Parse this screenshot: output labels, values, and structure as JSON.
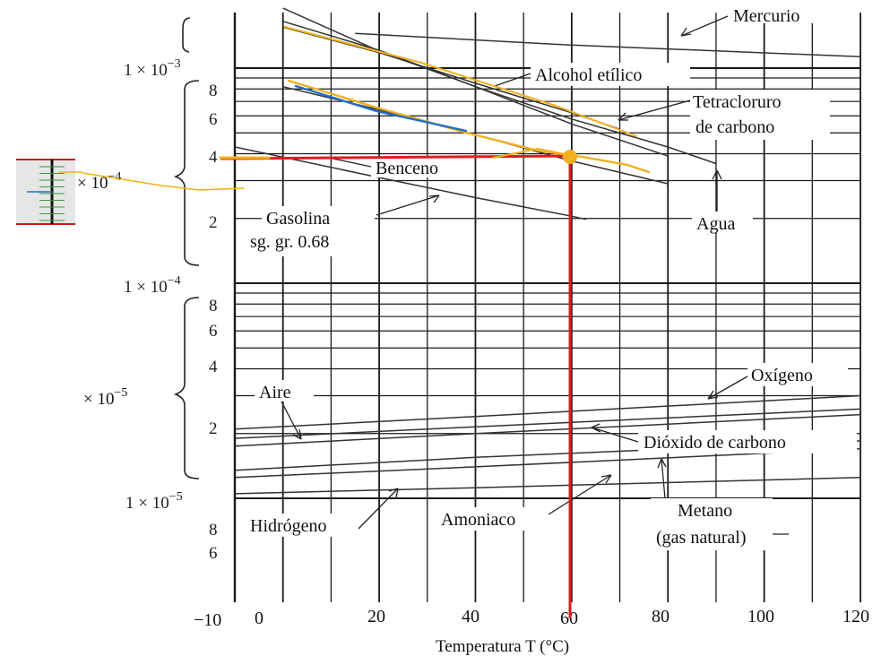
{
  "chart_data": {
    "type": "line",
    "xlabel": "Temperatura T (°C)",
    "x_ticks": [
      "−10",
      "0",
      "20",
      "40",
      "60",
      "80",
      "100",
      "120"
    ],
    "xlim": [
      -10,
      120
    ],
    "y_scale": "log",
    "y_tick_labels": {
      "e3": [
        "1 × 10",
        "−3"
      ],
      "e4": [
        "1 × 10",
        "−4"
      ],
      "e5": [
        "1 × 10",
        "−5"
      ],
      "g4": [
        "× 10",
        "−4"
      ],
      "g5": [
        "× 10",
        "−5"
      ],
      "digits": [
        "8",
        "6",
        "4",
        "2"
      ]
    },
    "series": [
      {
        "name": "Mercurio",
        "x": [
          15,
          60,
          120
        ],
        "y": [
          0.00145,
          0.00128,
          0.00113
        ]
      },
      {
        "name": "Alcohol etílico",
        "x": [
          0,
          20,
          40,
          60,
          80
        ],
        "y": [
          0.00165,
          0.00121,
          0.00082,
          0.00055,
          0.00039
        ]
      },
      {
        "name": "Tetracloruro de carbono",
        "x": [
          0,
          20,
          40,
          60,
          70
        ],
        "y": [
          0.00155,
          0.00118,
          0.00085,
          0.00062,
          0.00052
        ]
      },
      {
        "name": "Benceno",
        "x": [
          0,
          20,
          40,
          60,
          80
        ],
        "y": [
          0.00082,
          0.00064,
          0.00049,
          0.00037,
          0.00029
        ]
      },
      {
        "name": "Agua",
        "x": [
          0,
          20,
          40,
          60,
          80,
          90
        ],
        "y": [
          0.0019,
          0.0012,
          0.00082,
          0.00058,
          0.00043,
          0.00036
        ]
      },
      {
        "name": "Gasolina sg. gr. 0.68",
        "x": [
          -10,
          20,
          40,
          60,
          63
        ],
        "y": [
          0.00043,
          0.00031,
          0.00025,
          0.000205,
          0.000198
        ]
      },
      {
        "name": "Oxígeno",
        "x": [
          -10,
          40,
          120
        ],
        "y": [
          2.1e-05,
          2.4e-05,
          3e-05
        ]
      },
      {
        "name": "Aire",
        "x": [
          -10,
          40,
          120
        ],
        "y": [
          1.9e-05,
          2.15e-05,
          2.6e-05
        ]
      },
      {
        "name": "Dióxido de carbono",
        "x": [
          -10,
          40,
          120
        ],
        "y": [
          1.75e-05,
          2e-05,
          2.45e-05
        ]
      },
      {
        "name": "Metano (gas natural)",
        "x": [
          -10,
          40,
          120
        ],
        "y": [
          1.35e-05,
          1.55e-05,
          1.85e-05
        ]
      },
      {
        "name": "Amoniaco",
        "x": [
          -10,
          40,
          120
        ],
        "y": [
          1.25e-05,
          1.4e-05,
          1.7e-05
        ]
      },
      {
        "name": "Hidrógeno",
        "x": [
          -10,
          40,
          120
        ],
        "y": [
          1.05e-05,
          1.12e-05,
          1.25e-05
        ]
      }
    ],
    "annotations": {
      "reading_point": {
        "x": 60,
        "y": 0.00039
      },
      "reference_lines": "red vertical at x = 60 and red horizontal at y = 3.9 × 10^-4"
    }
  },
  "labels": {
    "mercurio": "Mercurio",
    "alcohol": "Alcohol etílico",
    "tetra1": "Tetracloruro",
    "tetra2": "de carbono",
    "benceno": "Benceno",
    "gasolina1": "Gasolina",
    "gasolina2": "sg. gr. 0.68",
    "agua": "Agua",
    "oxigeno": "Oxígeno",
    "aire": "Aire",
    "dioxido": "Dióxido de carbono",
    "hidrogeno": "Hidrógeno",
    "amoniaco": "Amoniaco",
    "metano1": "Metano",
    "metano2": "(gas natural)"
  },
  "colors": {
    "grid": "#1a1a1a",
    "curve": "#333333",
    "highlight": "#f2b01e",
    "annotation": "#e01c1c",
    "blue_mark": "#1f6fc9"
  }
}
